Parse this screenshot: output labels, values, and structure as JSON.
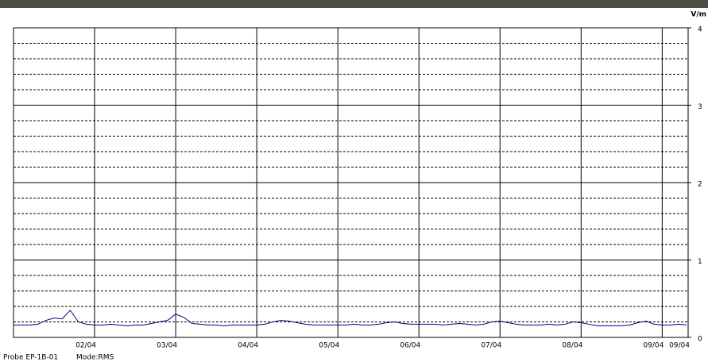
{
  "chart_data": {
    "type": "line",
    "y_unit": "V/m",
    "footer": [
      "Probe EP-1B-01",
      "Mode:RMS"
    ],
    "xlim": [
      0,
      8.32
    ],
    "xticks": [
      {
        "value": 1,
        "label": "02/04"
      },
      {
        "value": 2,
        "label": "03/04"
      },
      {
        "value": 3,
        "label": "04/04"
      },
      {
        "value": 4,
        "label": "05/04"
      },
      {
        "value": 5,
        "label": "06/04"
      },
      {
        "value": 6,
        "label": "07/04"
      },
      {
        "value": 7,
        "label": "08/04"
      },
      {
        "value": 8,
        "label": "09/04"
      },
      {
        "value": 8.32,
        "label": "09/04"
      }
    ],
    "ylim": [
      0,
      4
    ],
    "yticks": [
      0,
      1,
      2,
      3,
      4
    ],
    "minor_yticks": [
      0.2,
      0.4,
      0.6,
      0.8,
      1.2,
      1.4,
      1.6,
      1.8,
      2.2,
      2.4,
      2.6,
      2.8,
      3.2,
      3.4,
      3.6,
      3.8
    ],
    "grid": true,
    "color": "#00007f",
    "x": [
      0,
      0.1,
      0.2,
      0.3,
      0.4,
      0.5,
      0.6,
      0.7,
      0.8,
      0.9,
      1,
      1.1,
      1.2,
      1.3,
      1.4,
      1.5,
      1.6,
      1.7,
      1.8,
      1.9,
      2,
      2.1,
      2.2,
      2.3,
      2.4,
      2.5,
      2.6,
      2.7,
      2.8,
      2.9,
      3,
      3.1,
      3.2,
      3.3,
      3.4,
      3.5,
      3.6,
      3.7,
      3.8,
      3.9,
      4,
      4.1,
      4.2,
      4.3,
      4.4,
      4.5,
      4.6,
      4.7,
      4.8,
      4.9,
      5,
      5.1,
      5.2,
      5.3,
      5.4,
      5.5,
      5.6,
      5.7,
      5.8,
      5.9,
      6,
      6.1,
      6.2,
      6.3,
      6.4,
      6.5,
      6.6,
      6.7,
      6.8,
      6.9,
      7,
      7.1,
      7.2,
      7.3,
      7.4,
      7.5,
      7.6,
      7.7,
      7.8,
      7.9,
      8,
      8.1,
      8.2,
      8.3
    ],
    "values": [
      0.16,
      0.16,
      0.16,
      0.17,
      0.22,
      0.25,
      0.24,
      0.35,
      0.2,
      0.17,
      0.16,
      0.16,
      0.17,
      0.16,
      0.15,
      0.16,
      0.16,
      0.18,
      0.2,
      0.22,
      0.3,
      0.26,
      0.18,
      0.17,
      0.16,
      0.16,
      0.15,
      0.16,
      0.16,
      0.16,
      0.16,
      0.17,
      0.2,
      0.22,
      0.21,
      0.19,
      0.17,
      0.16,
      0.16,
      0.16,
      0.16,
      0.16,
      0.17,
      0.16,
      0.16,
      0.17,
      0.19,
      0.2,
      0.18,
      0.17,
      0.17,
      0.17,
      0.17,
      0.16,
      0.17,
      0.18,
      0.17,
      0.16,
      0.17,
      0.2,
      0.21,
      0.19,
      0.17,
      0.16,
      0.16,
      0.16,
      0.17,
      0.16,
      0.17,
      0.2,
      0.19,
      0.17,
      0.15,
      0.15,
      0.15,
      0.15,
      0.16,
      0.19,
      0.21,
      0.17,
      0.16,
      0.16,
      0.17,
      0.16
    ]
  }
}
